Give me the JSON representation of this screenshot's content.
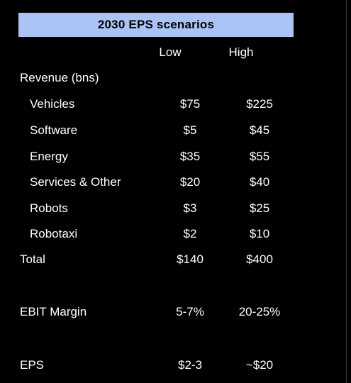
{
  "title": "2030 EPS scenarios",
  "columns": {
    "low": "Low",
    "high": "High"
  },
  "section_header": "Revenue (bns)",
  "revenue_rows": [
    {
      "label": "Vehicles",
      "low": "$75",
      "high": "$225"
    },
    {
      "label": "Software",
      "low": "$5",
      "high": "$45"
    },
    {
      "label": "Energy",
      "low": "$35",
      "high": "$55"
    },
    {
      "label": "Services & Other",
      "low": "$20",
      "high": "$40"
    },
    {
      "label": "Robots",
      "low": "$3",
      "high": "$25"
    },
    {
      "label": "Robotaxi",
      "low": "$2",
      "high": "$10"
    }
  ],
  "total": {
    "label": "Total",
    "low": "$140",
    "high": "$400"
  },
  "ebit_margin": {
    "label": "EBIT Margin",
    "low": "5-7%",
    "high": "20-25%"
  },
  "eps": {
    "label": "EPS",
    "low": "$2-3",
    "high": "~$20"
  },
  "colors": {
    "background": "#000000",
    "title_fill": "#a9c4f5",
    "text": "#ffffff"
  }
}
